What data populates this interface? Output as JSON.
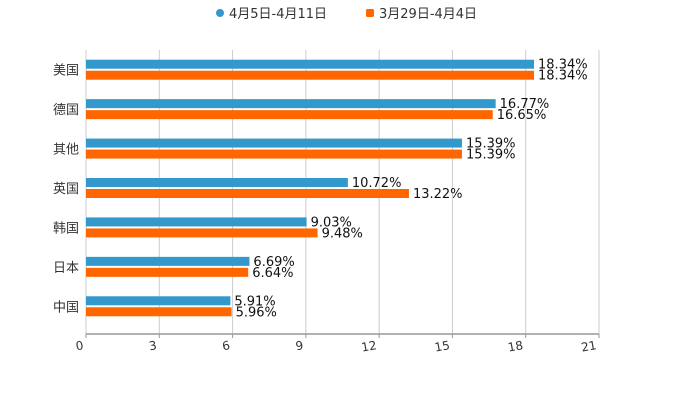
{
  "chart_data": {
    "type": "bar",
    "orientation": "horizontal",
    "categories": [
      "美国",
      "德国",
      "其他",
      "英国",
      "韩国",
      "日本",
      "中国"
    ],
    "series": [
      {
        "name": "4月5日-4月11日",
        "color": "#3399cc",
        "values": [
          18.34,
          16.77,
          15.39,
          10.72,
          9.03,
          6.69,
          5.91
        ]
      },
      {
        "name": "3月29日-4月4日",
        "color": "#ff6600",
        "values": [
          18.34,
          16.65,
          15.39,
          13.22,
          9.48,
          6.64,
          5.96
        ]
      }
    ],
    "value_suffix": "%",
    "xlim": [
      0,
      21
    ],
    "xticks": [
      "0",
      "3",
      "6",
      "9",
      "12",
      "15",
      "18",
      "21"
    ],
    "grid": true,
    "legend_position": "top-center"
  }
}
